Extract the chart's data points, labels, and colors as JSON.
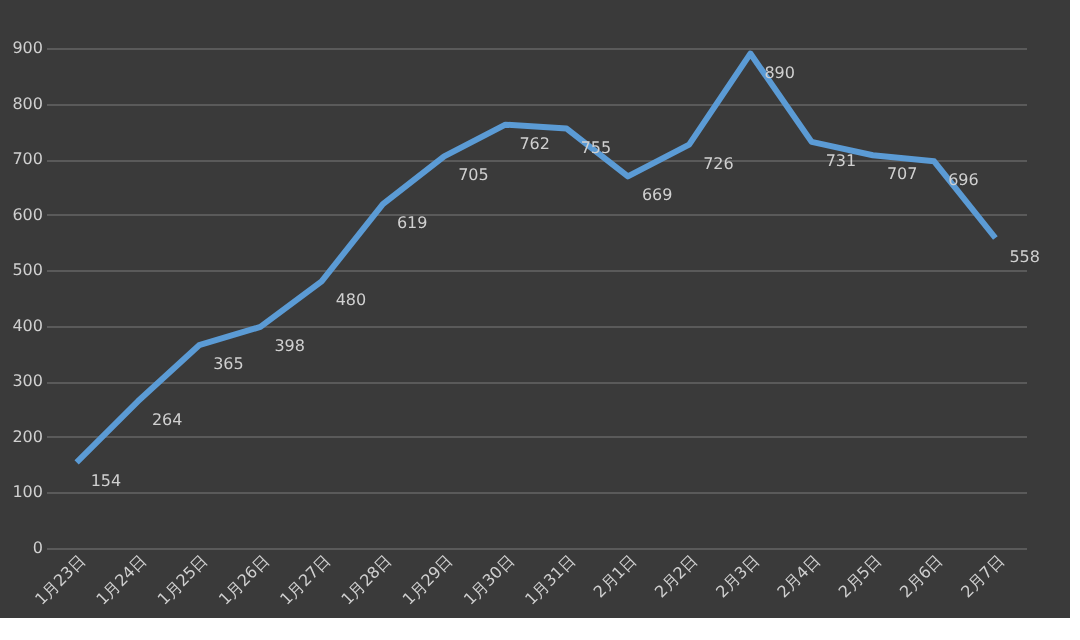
{
  "chart_data": {
    "type": "line",
    "categories": [
      "1月23日",
      "1月24日",
      "1月25日",
      "1月26日",
      "1月27日",
      "1月28日",
      "1月29日",
      "1月30日",
      "1月31日",
      "2月1日",
      "2月2日",
      "2月3日",
      "2月4日",
      "2月5日",
      "2月6日",
      "2月7日"
    ],
    "series": [
      {
        "color": "#5b9bd5",
        "values": [
          154,
          264,
          365,
          398,
          480,
          619,
          705,
          762,
          755,
          669,
          726,
          890,
          731,
          707,
          696,
          558
        ]
      }
    ],
    "ylim": [
      0,
      900
    ],
    "yticks": [
      0,
      100,
      200,
      300,
      400,
      500,
      600,
      700,
      800,
      900
    ],
    "grid": "y",
    "data_labels": true,
    "marker": "none",
    "line_style": "solid",
    "legend": false
  }
}
